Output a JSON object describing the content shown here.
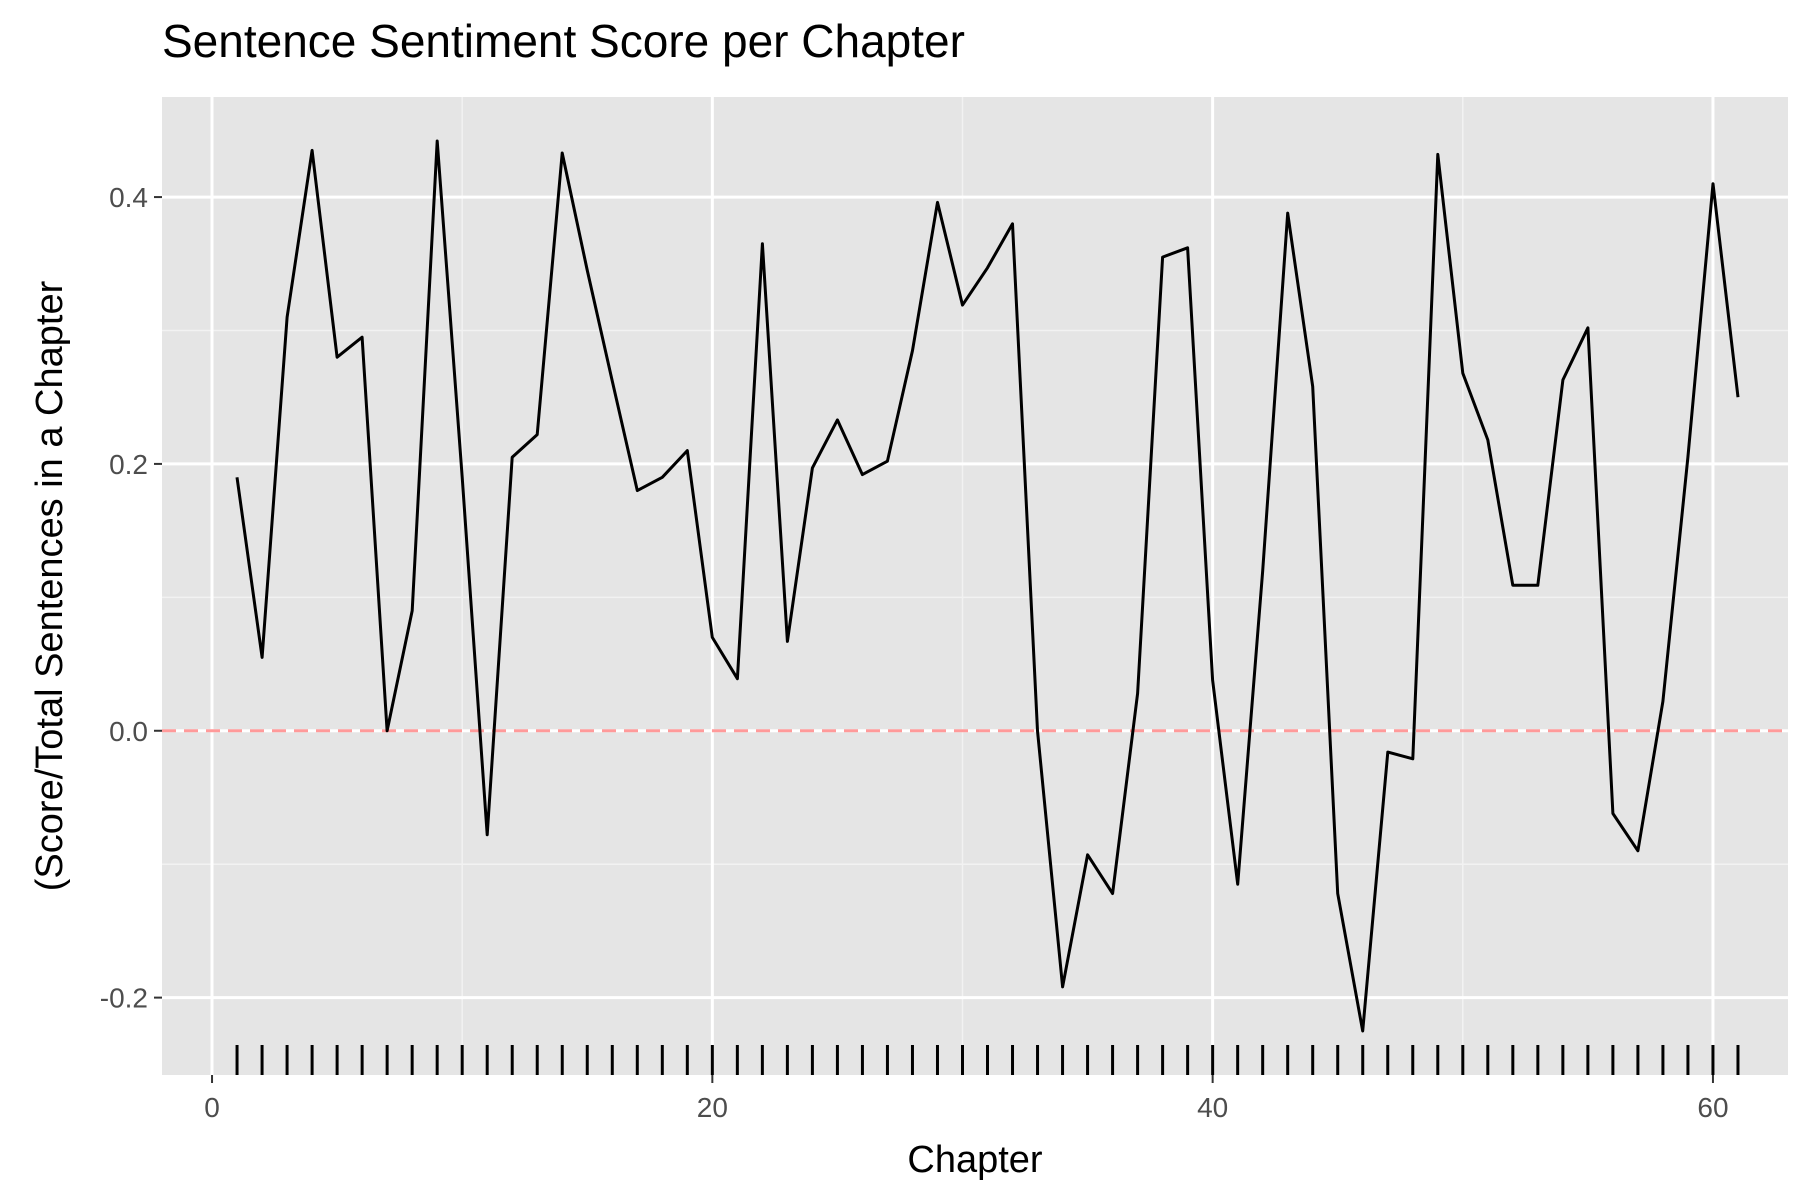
{
  "chart_data": {
    "type": "line",
    "title": "Sentence Sentiment Score per Chapter",
    "xlabel": "Chapter",
    "ylabel": "(Score/Total Sentences in a Chapter",
    "xlim": [
      -2,
      63
    ],
    "ylim": [
      -0.258,
      0.475
    ],
    "x_ticks": [
      0,
      20,
      40,
      60
    ],
    "x_tick_labels": [
      "0",
      "20",
      "40",
      "60"
    ],
    "y_ticks": [
      -0.2,
      0.0,
      0.2,
      0.4
    ],
    "y_tick_labels": [
      "-0.2",
      "0.0",
      "0.2",
      "0.4"
    ],
    "grid": true,
    "reference_line": {
      "y": 0.0,
      "style": "dashed",
      "color": "#ff9a9a"
    },
    "rug": true,
    "series": [
      {
        "color": "#000000",
        "x": [
          1,
          2,
          3,
          4,
          5,
          6,
          7,
          8,
          9,
          10,
          11,
          12,
          13,
          14,
          15,
          16,
          17,
          18,
          19,
          20,
          21,
          22,
          23,
          24,
          25,
          26,
          27,
          28,
          29,
          30,
          31,
          32,
          33,
          34,
          35,
          36,
          37,
          38,
          39,
          40,
          41,
          42,
          43,
          44,
          45,
          46,
          47,
          48,
          49,
          50,
          51,
          52,
          53,
          54,
          55,
          56,
          57,
          58,
          59,
          60,
          61
        ],
        "y": [
          0.19,
          0.055,
          0.31,
          0.435,
          0.28,
          0.295,
          0.0,
          0.09,
          0.442,
          0.19,
          -0.078,
          0.205,
          0.222,
          0.433,
          0.345,
          0.262,
          0.18,
          0.19,
          0.21,
          0.07,
          0.039,
          0.365,
          0.067,
          0.197,
          0.233,
          0.192,
          0.202,
          0.285,
          0.396,
          0.319,
          0.347,
          0.38,
          0.0,
          -0.192,
          -0.093,
          -0.122,
          0.028,
          0.355,
          0.362,
          0.038,
          -0.115,
          0.12,
          0.388,
          0.258,
          -0.122,
          -0.225,
          -0.016,
          -0.021,
          0.432,
          0.268,
          0.218,
          0.109,
          0.109,
          0.263,
          0.302,
          -0.062,
          -0.09,
          0.022,
          0.205,
          0.41,
          0.25
        ]
      }
    ]
  }
}
